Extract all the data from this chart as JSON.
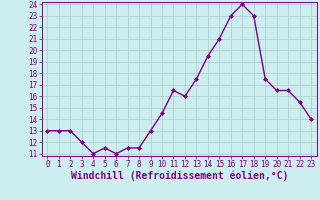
{
  "x": [
    0,
    1,
    2,
    3,
    4,
    5,
    6,
    7,
    8,
    9,
    10,
    11,
    12,
    13,
    14,
    15,
    16,
    17,
    18,
    19,
    20,
    21,
    22,
    23
  ],
  "y": [
    13,
    13,
    13,
    12,
    11,
    11.5,
    11,
    11.5,
    11.5,
    13,
    14.5,
    16.5,
    16,
    17.5,
    19.5,
    21,
    23,
    24,
    23,
    17.5,
    16.5,
    16.5,
    15.5,
    14
  ],
  "line_color": "#800080",
  "marker": "D",
  "marker_size": 2,
  "bg_color": "#cceeee",
  "grid_color": "#aacccc",
  "xlabel": "Windchill (Refroidissement éolien,°C)",
  "xlabel_fontsize": 7,
  "ylim": [
    11,
    24
  ],
  "xlim": [
    -0.5,
    23.5
  ],
  "yticks": [
    11,
    12,
    13,
    14,
    15,
    16,
    17,
    18,
    19,
    20,
    21,
    22,
    23,
    24
  ],
  "xticks": [
    0,
    1,
    2,
    3,
    4,
    5,
    6,
    7,
    8,
    9,
    10,
    11,
    12,
    13,
    14,
    15,
    16,
    17,
    18,
    19,
    20,
    21,
    22,
    23
  ],
  "tick_color": "#800080",
  "tick_fontsize": 5.5,
  "line_width": 1.0,
  "spine_color": "#800080"
}
